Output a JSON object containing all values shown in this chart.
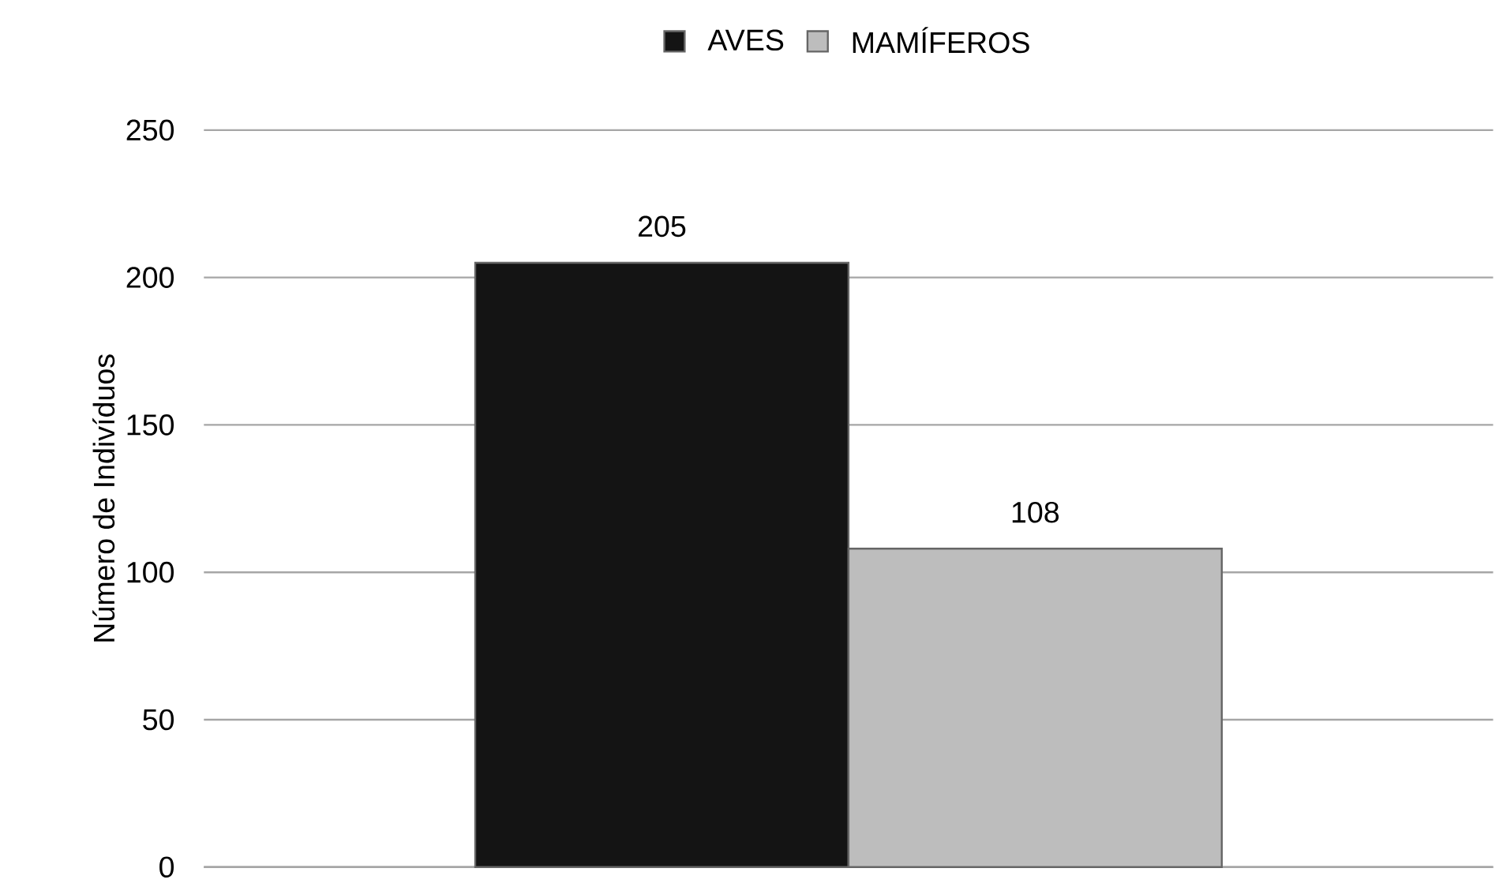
{
  "chart_data": {
    "type": "bar",
    "ylabel": "Número de Indivíduos",
    "categories": [
      null
    ],
    "series": [
      {
        "name": "AVES",
        "color": "#141414",
        "values": [
          205
        ]
      },
      {
        "name": "MAMÍFEROS",
        "color": "#bdbdbd",
        "values": [
          108
        ]
      }
    ],
    "ylim": [
      0,
      250
    ],
    "yticks": [
      0,
      50,
      100,
      150,
      200,
      250
    ],
    "grid": "y",
    "legend": "top",
    "data_labels": true
  }
}
